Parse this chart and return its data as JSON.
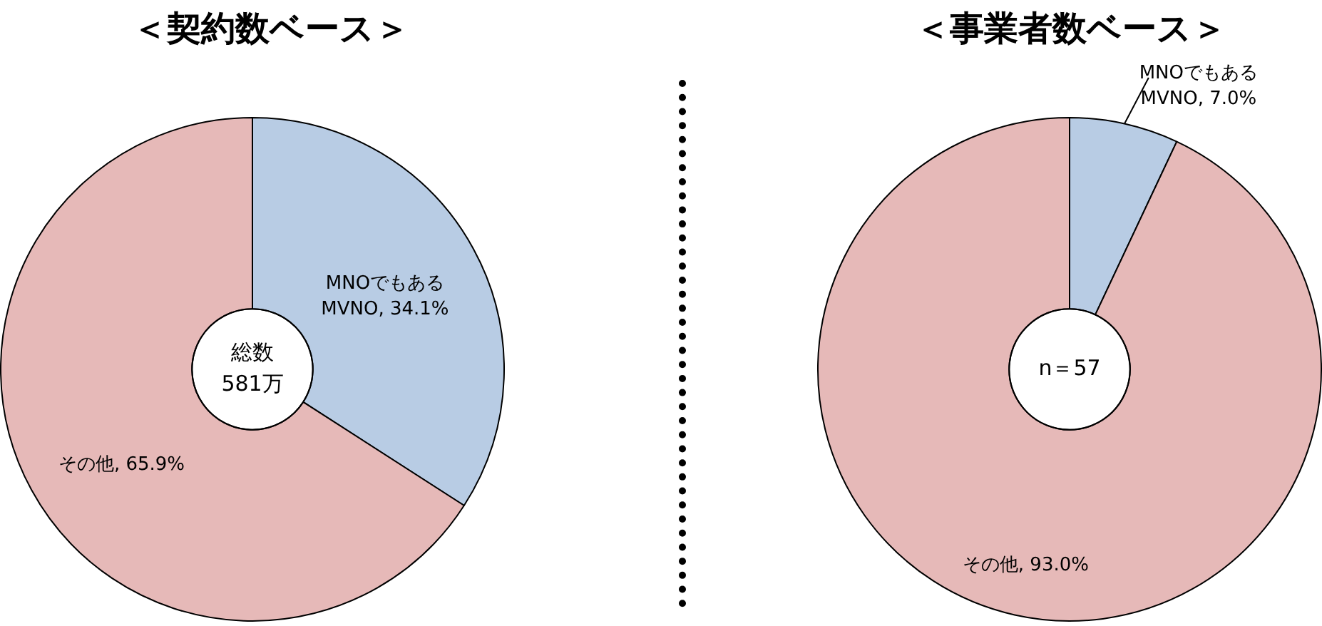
{
  "chart_data": [
    {
      "type": "donut",
      "title": "＜契約数ベース＞",
      "categories": [
        "MNOでもある MVNO",
        "その他"
      ],
      "values": [
        34.1,
        65.9
      ],
      "value_labels": [
        ", 34.1%",
        ", 65.9%"
      ],
      "colors": [
        "#b8cce4",
        "#e6b9b8"
      ],
      "legend": false,
      "annotations": [
        "総数 581万"
      ]
    },
    {
      "type": "donut",
      "title": "＜事業者数ベース＞",
      "categories": [
        "MNOでもある MVNO",
        "その他"
      ],
      "values": [
        7.0,
        93.0
      ],
      "value_labels": [
        ", 7.0%",
        ", 93.0%"
      ],
      "colors": [
        "#b8cce4",
        "#e6b9b8"
      ],
      "legend": false,
      "annotations": [
        "n＝57"
      ]
    }
  ]
}
